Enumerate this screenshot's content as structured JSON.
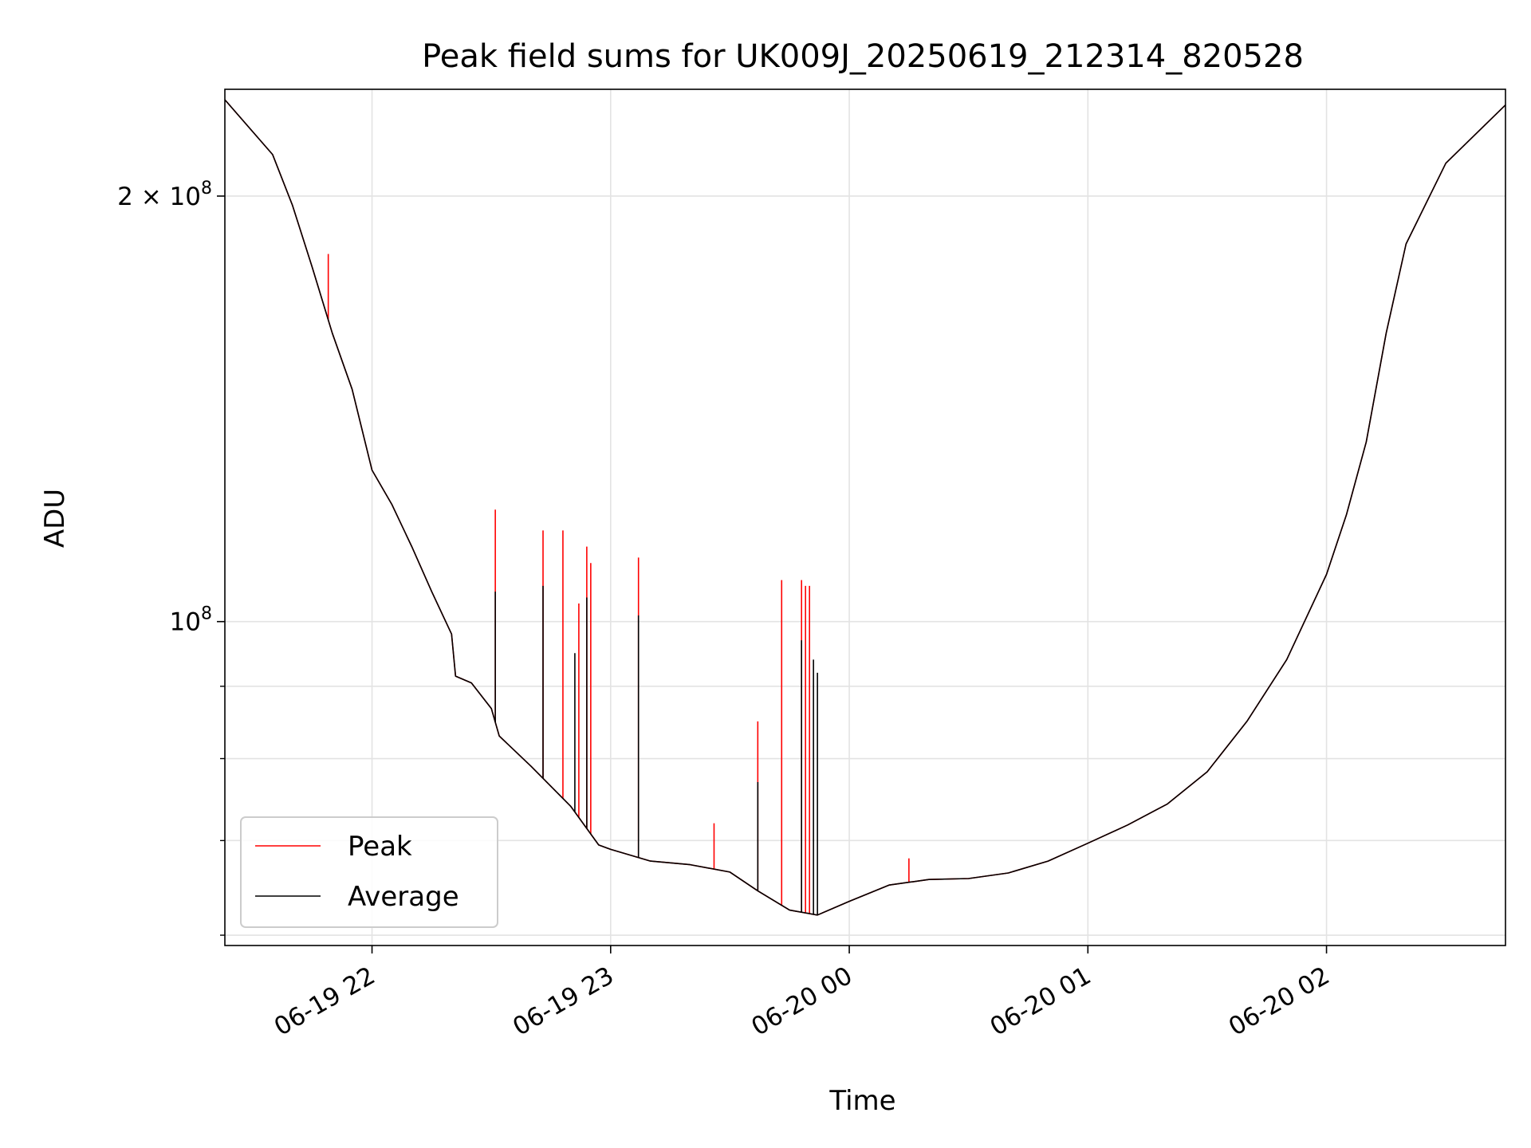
{
  "chart_data": {
    "type": "line",
    "title": "Peak field sums for UK009J_20250619_212314_820528",
    "xlabel": "Time",
    "ylabel": "ADU",
    "y_scale": "log",
    "xlim": [
      "2025-06-19 21:23",
      "2025-06-20 02:45"
    ],
    "ylim": [
      59000000,
      238000000
    ],
    "x_ticks": [
      {
        "label": "06-19 22",
        "t": "2025-06-19 22:00"
      },
      {
        "label": "06-19 23",
        "t": "2025-06-19 23:00"
      },
      {
        "label": "06-20 00",
        "t": "2025-06-20 00:00"
      },
      {
        "label": "06-20 01",
        "t": "2025-06-20 01:00"
      },
      {
        "label": "06-20 02",
        "t": "2025-06-20 02:00"
      }
    ],
    "y_major_ticks": [
      {
        "value": 100000000,
        "base": "10",
        "exp": "8",
        "coef": ""
      },
      {
        "value": 200000000,
        "base": "10",
        "exp": "8",
        "coef": "2 × "
      }
    ],
    "y_minor_ticks": [
      60000000,
      70000000,
      80000000,
      90000000
    ],
    "grid": true,
    "legend": {
      "position": "lower-left",
      "entries": [
        "Peak",
        "Average"
      ]
    },
    "colors": {
      "Peak": "#ff0000",
      "Average": "#000000"
    },
    "series": [
      {
        "name": "Average",
        "points": [
          [
            "2025-06-19 21:23",
            234000000
          ],
          [
            "2025-06-19 21:35",
            214000000
          ],
          [
            "2025-06-19 21:40",
            197000000
          ],
          [
            "2025-06-19 21:45",
            178000000
          ],
          [
            "2025-06-19 21:50",
            160000000
          ],
          [
            "2025-06-19 21:55",
            146000000
          ],
          [
            "2025-06-19 22:00",
            128000000
          ],
          [
            "2025-06-19 22:05",
            121000000
          ],
          [
            "2025-06-19 22:10",
            113000000
          ],
          [
            "2025-06-19 22:15",
            105000000
          ],
          [
            "2025-06-19 22:20",
            98000000
          ],
          [
            "2025-06-19 22:21",
            91500000
          ],
          [
            "2025-06-19 22:25",
            90500000
          ],
          [
            "2025-06-19 22:30",
            86800000
          ],
          [
            "2025-06-19 22:32",
            83000000
          ],
          [
            "2025-06-19 22:40",
            79000000
          ],
          [
            "2025-06-19 22:50",
            74000000
          ],
          [
            "2025-06-19 22:57",
            69500000
          ],
          [
            "2025-06-19 23:00",
            69000000
          ],
          [
            "2025-06-19 23:10",
            67700000
          ],
          [
            "2025-06-19 23:20",
            67300000
          ],
          [
            "2025-06-19 23:30",
            66500000
          ],
          [
            "2025-06-19 23:37",
            64500000
          ],
          [
            "2025-06-19 23:45",
            62500000
          ],
          [
            "2025-06-19 23:52",
            62000000
          ],
          [
            "2025-06-20 00:00",
            63400000
          ],
          [
            "2025-06-20 00:10",
            65100000
          ],
          [
            "2025-06-20 00:20",
            65700000
          ],
          [
            "2025-06-20 00:30",
            65800000
          ],
          [
            "2025-06-20 00:40",
            66400000
          ],
          [
            "2025-06-20 00:50",
            67700000
          ],
          [
            "2025-06-20 01:00",
            69700000
          ],
          [
            "2025-06-20 01:10",
            71800000
          ],
          [
            "2025-06-20 01:20",
            74300000
          ],
          [
            "2025-06-20 01:30",
            78300000
          ],
          [
            "2025-06-20 01:40",
            85000000
          ],
          [
            "2025-06-20 01:50",
            94000000
          ],
          [
            "2025-06-20 02:00",
            108000000
          ],
          [
            "2025-06-20 02:05",
            119000000
          ],
          [
            "2025-06-20 02:10",
            134000000
          ],
          [
            "2025-06-20 02:15",
            160000000
          ],
          [
            "2025-06-20 02:20",
            185000000
          ],
          [
            "2025-06-20 02:30",
            211000000
          ],
          [
            "2025-06-20 02:45",
            232000000
          ]
        ],
        "spikes": [
          [
            "2025-06-19 22:31",
            105000000
          ],
          [
            "2025-06-19 22:43",
            106000000
          ],
          [
            "2025-06-19 22:51",
            95000000
          ],
          [
            "2025-06-19 22:54",
            104000000
          ],
          [
            "2025-06-19 23:07",
            101000000
          ],
          [
            "2025-06-19 23:37",
            77000000
          ],
          [
            "2025-06-19 23:48",
            97000000
          ],
          [
            "2025-06-19 23:51",
            94000000
          ],
          [
            "2025-06-19 23:52",
            92000000
          ]
        ]
      },
      {
        "name": "Peak",
        "points": [
          [
            "2025-06-19 21:23",
            234000000
          ],
          [
            "2025-06-19 21:35",
            214000000
          ],
          [
            "2025-06-19 21:40",
            197000000
          ],
          [
            "2025-06-19 21:45",
            178000000
          ],
          [
            "2025-06-19 21:50",
            160000000
          ],
          [
            "2025-06-19 21:55",
            146000000
          ],
          [
            "2025-06-19 22:00",
            128000000
          ],
          [
            "2025-06-19 22:05",
            121000000
          ],
          [
            "2025-06-19 22:10",
            113000000
          ],
          [
            "2025-06-19 22:15",
            105000000
          ],
          [
            "2025-06-19 22:20",
            98000000
          ],
          [
            "2025-06-19 22:21",
            91500000
          ],
          [
            "2025-06-19 22:25",
            90500000
          ],
          [
            "2025-06-19 22:30",
            86800000
          ],
          [
            "2025-06-19 22:32",
            83000000
          ],
          [
            "2025-06-19 22:40",
            79000000
          ],
          [
            "2025-06-19 22:50",
            74000000
          ],
          [
            "2025-06-19 22:57",
            69500000
          ],
          [
            "2025-06-19 23:00",
            69000000
          ],
          [
            "2025-06-19 23:10",
            67700000
          ],
          [
            "2025-06-19 23:20",
            67300000
          ],
          [
            "2025-06-19 23:30",
            66500000
          ],
          [
            "2025-06-19 23:37",
            64500000
          ],
          [
            "2025-06-19 23:45",
            62500000
          ],
          [
            "2025-06-19 23:52",
            62000000
          ],
          [
            "2025-06-20 00:00",
            63400000
          ],
          [
            "2025-06-20 00:10",
            65100000
          ],
          [
            "2025-06-20 00:20",
            65700000
          ],
          [
            "2025-06-20 00:30",
            65800000
          ],
          [
            "2025-06-20 00:40",
            66400000
          ],
          [
            "2025-06-20 00:50",
            67700000
          ],
          [
            "2025-06-20 01:00",
            69700000
          ],
          [
            "2025-06-20 01:10",
            71800000
          ],
          [
            "2025-06-20 01:20",
            74300000
          ],
          [
            "2025-06-20 01:30",
            78300000
          ],
          [
            "2025-06-20 01:40",
            85000000
          ],
          [
            "2025-06-20 01:50",
            94000000
          ],
          [
            "2025-06-20 02:00",
            108000000
          ],
          [
            "2025-06-20 02:05",
            119000000
          ],
          [
            "2025-06-20 02:10",
            134000000
          ],
          [
            "2025-06-20 02:15",
            160000000
          ],
          [
            "2025-06-20 02:20",
            185000000
          ],
          [
            "2025-06-20 02:30",
            211000000
          ],
          [
            "2025-06-20 02:45",
            232000000
          ]
        ],
        "spikes": [
          [
            "2025-06-19 21:49",
            182000000
          ],
          [
            "2025-06-19 22:31",
            120000000
          ],
          [
            "2025-06-19 22:43",
            116000000
          ],
          [
            "2025-06-19 22:48",
            116000000
          ],
          [
            "2025-06-19 22:52",
            103000000
          ],
          [
            "2025-06-19 22:54",
            113000000
          ],
          [
            "2025-06-19 22:55",
            110000000
          ],
          [
            "2025-06-19 23:07",
            111000000
          ],
          [
            "2025-06-19 23:26",
            72000000
          ],
          [
            "2025-06-19 23:37",
            85000000
          ],
          [
            "2025-06-19 23:43",
            107000000
          ],
          [
            "2025-06-19 23:48",
            107000000
          ],
          [
            "2025-06-19 23:49",
            106000000
          ],
          [
            "2025-06-19 23:50",
            106000000
          ],
          [
            "2025-06-20 00:15",
            68000000
          ]
        ]
      }
    ]
  }
}
